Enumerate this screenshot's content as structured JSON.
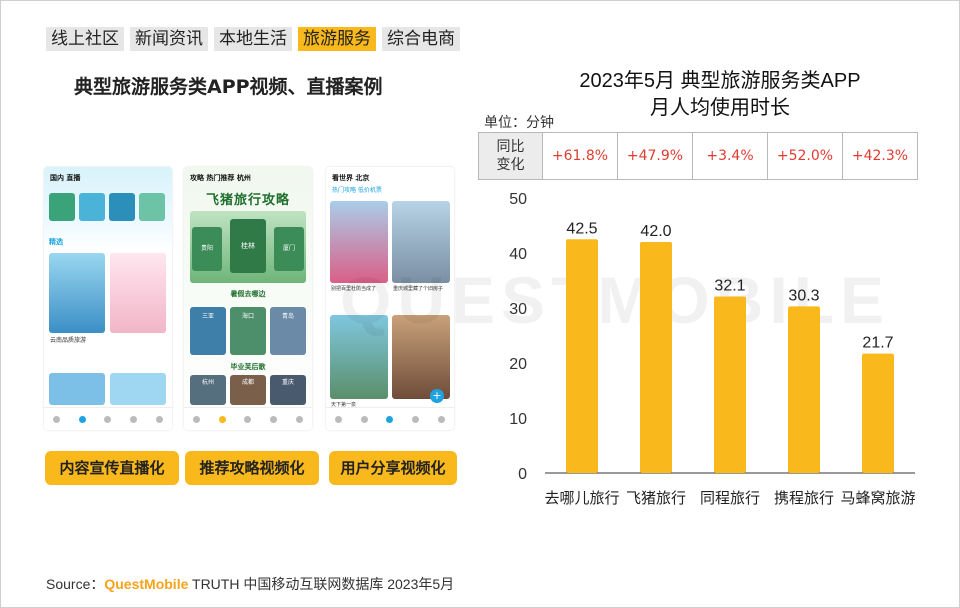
{
  "tabs": [
    {
      "label": "线上社区",
      "active": false
    },
    {
      "label": "新闻资讯",
      "active": false
    },
    {
      "label": "本地生活",
      "active": false
    },
    {
      "label": "旅游服务",
      "active": true
    },
    {
      "label": "综合电商",
      "active": false
    }
  ],
  "left_title": "典型旅游服务类APP视频、直播案例",
  "phones": [
    {
      "top_text": "国内  直播",
      "section": "精选",
      "caption": "云南品质旅游"
    },
    {
      "top_text": "攻略  热门推荐  杭州",
      "poster": "飞猪旅行攻略",
      "cities": [
        "贵阳",
        "桂林",
        "厦门",
        "三亚",
        "海口",
        "青岛",
        "杭州",
        "成都",
        "重庆"
      ],
      "banner1": "暑假去哪边",
      "banner2": "毕业芙后歌"
    },
    {
      "top_text": "看世界  北京",
      "tabs": "热门攻略  低价机票",
      "caption1": "别把百里杜鹃当成了",
      "caption2": "重庆城里藏了个旧房子",
      "caption3": "天下第一泉"
    }
  ],
  "buttons": [
    "内容宣传直播化",
    "推荐攻略视频化",
    "用户分享视频化"
  ],
  "watermark": "QUESTMOBILE",
  "comparison": {
    "unit": "单位：分钟",
    "header": "同比\n变化",
    "header_line1": "同比",
    "header_line2": "变化",
    "values": [
      "+61.8%",
      "+47.9%",
      "+3.4%",
      "+52.0%",
      "+42.3%"
    ]
  },
  "chart_data": {
    "type": "bar",
    "title": "2023年5月 典型旅游服务类APP\n月人均使用时长",
    "title_line1": "2023年5月 典型旅游服务类APP",
    "title_line2": "月人均使用时长",
    "categories": [
      "去哪儿旅行",
      "飞猪旅行",
      "同程旅行",
      "携程旅行",
      "马蜂窝旅游"
    ],
    "values": [
      42.5,
      42.0,
      32.1,
      30.3,
      21.7
    ],
    "ylim": [
      0,
      50
    ],
    "yticks": [
      0,
      10,
      20,
      30,
      40,
      50
    ],
    "grid": false,
    "bar_color": "#f9b81b"
  },
  "source": {
    "prefix": "Source：",
    "brand": "QuestMobile",
    "rest": " TRUTH 中国移动互联网数据库 2023年5月"
  }
}
